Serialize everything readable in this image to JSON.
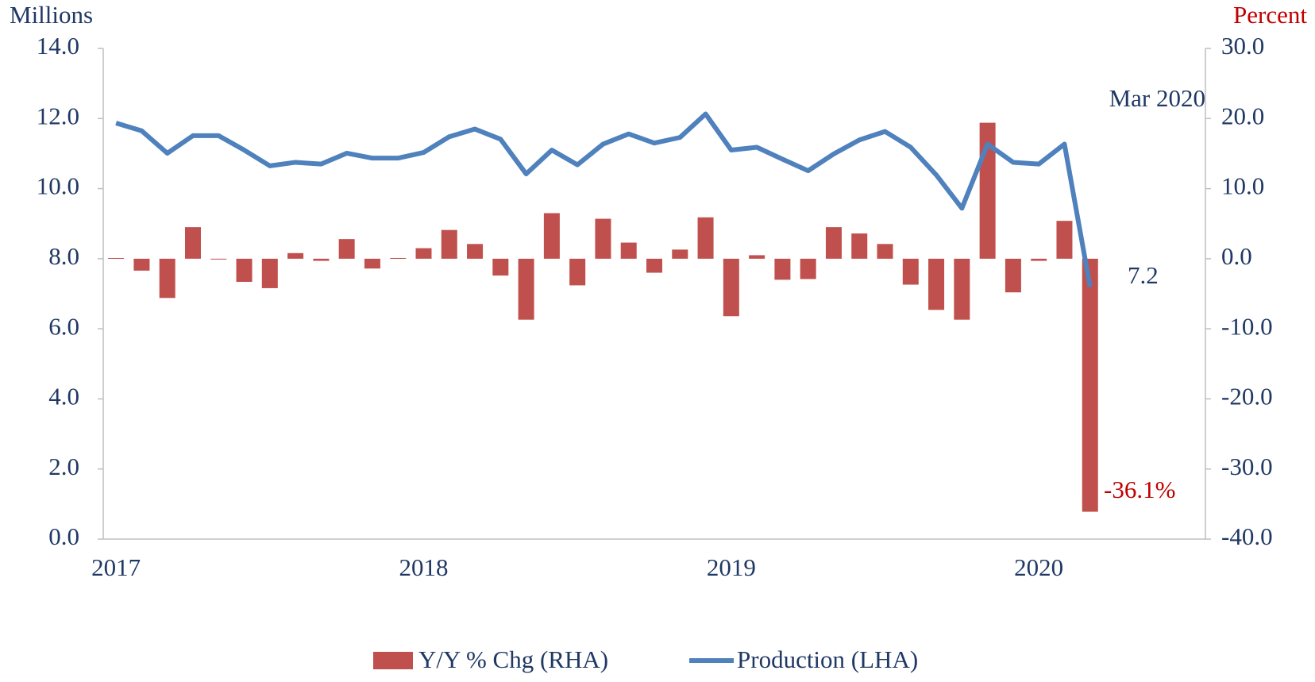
{
  "chart_data": {
    "type": "bar-line",
    "y_label": "Millions",
    "y2_label": "Percent",
    "categories": [
      "2017",
      null,
      null,
      null,
      null,
      null,
      null,
      null,
      null,
      null,
      null,
      null,
      "2018",
      null,
      null,
      null,
      null,
      null,
      null,
      null,
      null,
      null,
      null,
      null,
      "2019",
      null,
      null,
      null,
      null,
      null,
      null,
      null,
      null,
      null,
      null,
      null,
      "2020",
      null,
      null
    ],
    "series": [
      {
        "name": "Y/Y % Chg (RHA)",
        "type": "bar",
        "axis": "y2",
        "color": "#c0504d",
        "values": [
          0.1,
          -1.7,
          -5.6,
          4.5,
          0.0,
          -3.3,
          -4.2,
          0.8,
          -0.3,
          2.8,
          -1.4,
          0.1,
          1.5,
          4.1,
          2.1,
          -2.4,
          -8.7,
          6.5,
          -3.8,
          5.7,
          2.3,
          -2.0,
          1.3,
          5.9,
          -8.2,
          0.5,
          -3.0,
          -2.9,
          4.5,
          3.6,
          2.1,
          -3.7,
          -7.3,
          -8.7,
          19.4,
          -4.8,
          -0.3,
          5.4,
          -36.1
        ]
      },
      {
        "name": "Production (LHA)",
        "type": "line",
        "axis": "y",
        "color": "#4f81bd",
        "values": [
          11.87,
          11.65,
          11.01,
          11.51,
          11.51,
          11.1,
          10.65,
          10.75,
          10.7,
          11.01,
          10.87,
          10.87,
          11.03,
          11.48,
          11.7,
          11.41,
          10.42,
          11.1,
          10.68,
          11.27,
          11.56,
          11.3,
          11.46,
          12.13,
          11.1,
          11.18,
          10.84,
          10.51,
          10.99,
          11.39,
          11.63,
          11.18,
          10.39,
          9.44,
          11.27,
          10.75,
          10.7,
          11.27,
          7.2
        ]
      }
    ],
    "annotations": [
      "Mar 2020",
      "7.2",
      "-36.1%"
    ],
    "ylim": [
      0,
      14
    ],
    "yticks": [
      {
        "value": 0,
        "label": "0.0"
      },
      {
        "value": 2,
        "label": "2.0"
      },
      {
        "value": 4,
        "label": "4.0"
      },
      {
        "value": 6,
        "label": "6.0"
      },
      {
        "value": 8,
        "label": "8.0"
      },
      {
        "value": 10,
        "label": "10.0"
      },
      {
        "value": 12,
        "label": "12.0"
      },
      {
        "value": 14,
        "label": "14.0"
      }
    ],
    "y2lim": [
      -40,
      30
    ],
    "y2ticks": [
      {
        "value": -40,
        "label": "-40.0"
      },
      {
        "value": -30,
        "label": "-30.0"
      },
      {
        "value": -20,
        "label": "-20.0"
      },
      {
        "value": -10,
        "label": "-10.0"
      },
      {
        "value": 0,
        "label": "0.0"
      },
      {
        "value": 10,
        "label": "10.0"
      },
      {
        "value": 20,
        "label": "20.0"
      },
      {
        "value": 30,
        "label": "30.0"
      }
    ],
    "legend": "bottom"
  }
}
